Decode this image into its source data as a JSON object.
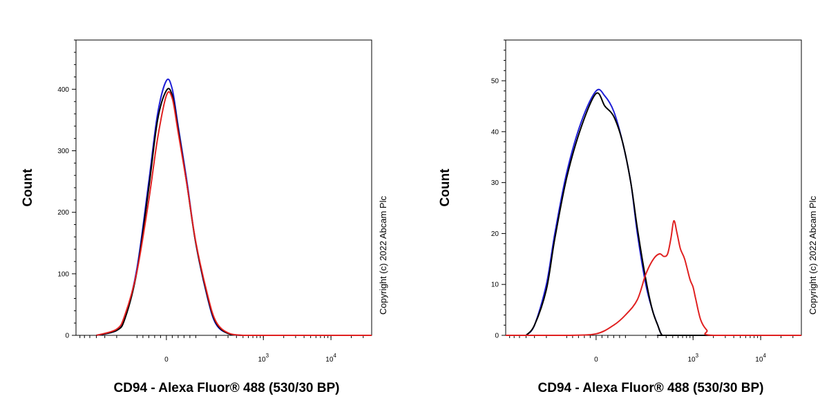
{
  "chart_data": [
    {
      "type": "line",
      "subtype": "flow-cytometry-histogram",
      "ylabel": "Count",
      "xlabel": "CD94 - Alexa Fluor® 488 (530/30 BP)",
      "x_scale": "biexponential",
      "xlim": [
        -800,
        40000
      ],
      "ylim": [
        0,
        480
      ],
      "y_ticks": [
        0,
        100,
        200,
        300,
        400
      ],
      "x_ticks": [
        {
          "value": 0,
          "label": "0",
          "sup": ""
        },
        {
          "value": 1000,
          "label": "10",
          "sup": "3"
        },
        {
          "value": 10000,
          "label": "10",
          "sup": "4"
        }
      ],
      "copyright": "Copyright (c) 2022 Abcam Plc",
      "series": [
        {
          "color": "#1f1fd6",
          "x": [
            -400,
            -200,
            -150,
            -100,
            -60,
            -30,
            0,
            20,
            40,
            70,
            100,
            150,
            200,
            300,
            500,
            800,
            2000,
            40000
          ],
          "y": [
            0,
            8,
            30,
            110,
            250,
            360,
            414,
            400,
            340,
            250,
            150,
            60,
            18,
            3,
            0,
            0,
            0,
            0
          ]
        },
        {
          "color": "#000000",
          "x": [
            -400,
            -200,
            -150,
            -100,
            -60,
            -30,
            0,
            20,
            40,
            70,
            100,
            150,
            200,
            300,
            500,
            800,
            2000,
            40000
          ],
          "y": [
            0,
            8,
            28,
            105,
            240,
            350,
            398,
            390,
            335,
            245,
            150,
            62,
            20,
            3,
            0,
            0,
            0,
            0
          ]
        },
        {
          "color": "#e02020",
          "x": [
            -400,
            -200,
            -150,
            -100,
            -60,
            -30,
            0,
            20,
            40,
            70,
            100,
            150,
            200,
            300,
            500,
            800,
            2000,
            40000
          ],
          "y": [
            0,
            10,
            34,
            105,
            220,
            320,
            390,
            385,
            330,
            245,
            152,
            65,
            22,
            4,
            0,
            0,
            0,
            0
          ]
        }
      ]
    },
    {
      "type": "line",
      "subtype": "flow-cytometry-histogram",
      "ylabel": "Count",
      "xlabel": "CD94 - Alexa Fluor® 488 (530/30 BP)",
      "x_scale": "biexponential",
      "xlim": [
        -800,
        40000
      ],
      "ylim": [
        0,
        58
      ],
      "y_ticks": [
        0,
        10,
        20,
        30,
        40,
        50
      ],
      "x_ticks": [
        {
          "value": 0,
          "label": "0",
          "sup": ""
        },
        {
          "value": 1000,
          "label": "10",
          "sup": "3"
        },
        {
          "value": 10000,
          "label": "10",
          "sup": "4"
        }
      ],
      "copyright": "Copyright (c) 2022 Abcam Plc",
      "series": [
        {
          "color": "#1f1fd6",
          "x": [
            -400,
            -300,
            -200,
            -150,
            -100,
            -50,
            0,
            30,
            60,
            90,
            120,
            150,
            200,
            250,
            300,
            350,
            450,
            40000
          ],
          "y": [
            0,
            2,
            10,
            20,
            32,
            42,
            48,
            47,
            44,
            38,
            30,
            20,
            10,
            5,
            2,
            0,
            0,
            0
          ]
        },
        {
          "color": "#000000",
          "x": [
            -400,
            -300,
            -200,
            -150,
            -100,
            -50,
            0,
            30,
            60,
            90,
            120,
            150,
            200,
            250,
            300,
            350,
            450,
            40000
          ],
          "y": [
            0,
            2,
            9,
            19,
            31,
            41,
            47.5,
            45,
            43,
            38,
            30,
            21,
            11,
            5,
            2,
            0,
            0,
            0
          ]
        },
        {
          "color": "#e02020",
          "x": [
            -800,
            -100,
            0,
            60,
            100,
            150,
            200,
            260,
            320,
            370,
            420,
            470,
            520,
            580,
            650,
            750,
            900,
            1000,
            1100,
            1300,
            1600,
            2000,
            40000
          ],
          "y": [
            0,
            0,
            0.3,
            2,
            4,
            7,
            12,
            15,
            16,
            15.5,
            16,
            19,
            22.5,
            20,
            17,
            15,
            11,
            9.5,
            7,
            3,
            1,
            0,
            0
          ]
        }
      ]
    }
  ]
}
